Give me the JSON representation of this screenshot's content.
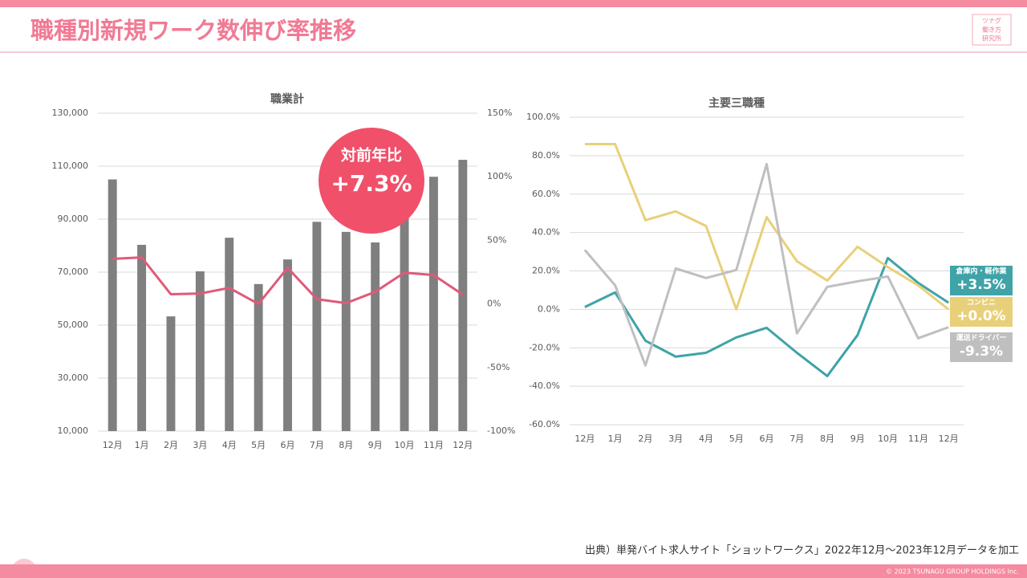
{
  "header": {
    "title": "職種別新規ワーク数伸び率推移",
    "logo": [
      "ツナグ",
      "働き方",
      "研究所"
    ]
  },
  "chart_data": [
    {
      "type": "bar",
      "title": "職業計",
      "categories": [
        "12月",
        "1月",
        "2月",
        "3月",
        "4月",
        "5月",
        "6月",
        "7月",
        "8月",
        "9月",
        "10月",
        "11月",
        "12月"
      ],
      "series": [
        {
          "mark": "bar",
          "color": "#7f7f7f",
          "values": [
            105000,
            80300,
            53300,
            70300,
            83000,
            65500,
            74800,
            89000,
            85200,
            81200,
            95500,
            106000,
            112400
          ]
        },
        {
          "mark": "line",
          "axis": "y2",
          "color": "#e05a78",
          "values": [
            35.4,
            36.6,
            7.6,
            8.2,
            12.6,
            0,
            28.4,
            3.8,
            0.6,
            9.5,
            24.6,
            22.7,
            7.3
          ]
        }
      ],
      "ylim": [
        10000,
        130000
      ],
      "yticks": [
        {
          "value": 10000,
          "label": "10,000"
        },
        {
          "value": 30000,
          "label": "30,000"
        },
        {
          "value": 50000,
          "label": "50,000"
        },
        {
          "value": 70000,
          "label": "70,000"
        },
        {
          "value": 90000,
          "label": "90,000"
        },
        {
          "value": 110000,
          "label": "110,000"
        },
        {
          "value": 130000,
          "label": "130,000"
        }
      ],
      "y2lim": [
        -100,
        150
      ],
      "y2ticks": [
        {
          "value": -100,
          "label": "-100%"
        },
        {
          "value": -50,
          "label": "-50%"
        },
        {
          "value": 0,
          "label": "0%"
        },
        {
          "value": 50,
          "label": "50%"
        },
        {
          "value": 100,
          "label": "100%"
        },
        {
          "value": 150,
          "label": "150%"
        }
      ],
      "grid": true,
      "callout": {
        "title": "対前年比",
        "value": "+7.3%",
        "color": "#f0506a"
      }
    },
    {
      "type": "line",
      "title": "主要三職種",
      "categories": [
        "12月",
        "1月",
        "2月",
        "3月",
        "4月",
        "5月",
        "6月",
        "7月",
        "8月",
        "9月",
        "10月",
        "11月",
        "12月"
      ],
      "series": [
        {
          "name": "倉庫内・軽作業",
          "color": "#3fa3a8",
          "end_label": "+3.5%",
          "values": [
            1.2,
            8.8,
            -16.3,
            -24.6,
            -22.6,
            -14.6,
            -9.6,
            -22.6,
            -34.7,
            -13.4,
            26.7,
            13.8,
            3.5
          ]
        },
        {
          "name": "コンビニ",
          "color": "#e8d07a",
          "end_label": "+0.0%",
          "values": [
            86,
            86,
            46.4,
            51,
            43.4,
            0,
            48,
            25,
            15,
            32.6,
            22,
            12.5,
            0
          ]
        },
        {
          "name": "運送ドライバー",
          "color": "#bfbfbf",
          "end_label": "-9.3%",
          "values": [
            30.9,
            12.5,
            -29.2,
            21.3,
            16.3,
            20.5,
            75.6,
            -12.5,
            11.7,
            14.6,
            17.1,
            -15,
            -9.3
          ]
        }
      ],
      "ylim": [
        -60,
        100
      ],
      "yticks": [
        {
          "value": -60,
          "label": "-60.0%"
        },
        {
          "value": -40,
          "label": "-40.0%"
        },
        {
          "value": -20,
          "label": "-20.0%"
        },
        {
          "value": 0,
          "label": "0.0%"
        },
        {
          "value": 20,
          "label": "20.0%"
        },
        {
          "value": 40,
          "label": "40.0%"
        },
        {
          "value": 60,
          "label": "60.0%"
        },
        {
          "value": 80,
          "label": "80.0%"
        },
        {
          "value": 100,
          "label": "100.0%"
        }
      ],
      "grid": true
    }
  ],
  "footer": {
    "source": "出典）単発バイト求人サイト「ショットワークス」2022年12月～2023年12月データを加工",
    "copyright": "© 2023 TSUNAGU GROUP HOLDINGS Inc."
  }
}
